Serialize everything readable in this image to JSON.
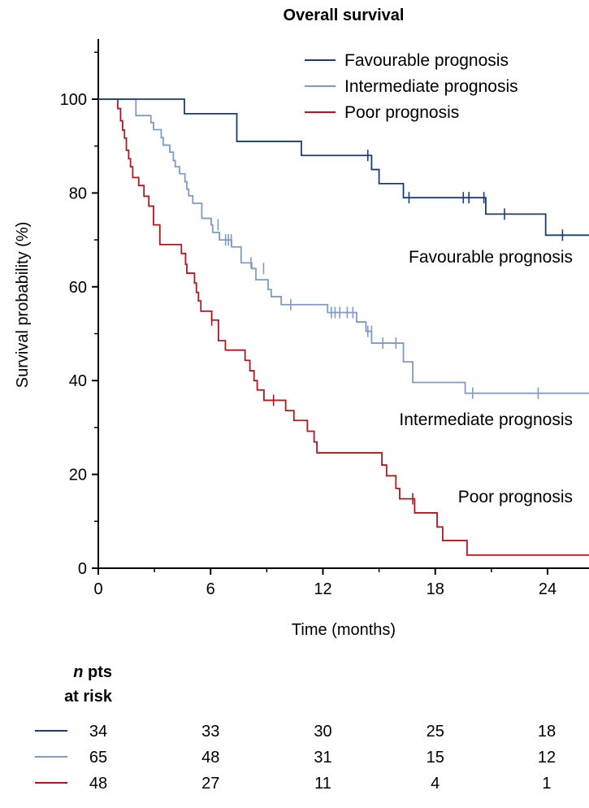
{
  "chart_data": {
    "type": "line",
    "subtype": "kaplan-meier",
    "title": "Overall survival",
    "xlabel": "Time (months)",
    "ylabel": "Survival probability (%)",
    "xlim": [
      0,
      26.2
    ],
    "ylim": [
      0,
      112
    ],
    "xticks": [
      0,
      6,
      12,
      18,
      24
    ],
    "yticks": [
      0,
      20,
      40,
      60,
      80,
      100
    ],
    "grid": false,
    "legend_position": "top-right",
    "series": [
      {
        "name": "Favourable prognosis",
        "label": "Favourable prognosis",
        "color": "#1c3a78",
        "steps": [
          [
            0,
            100
          ],
          [
            4.6,
            96.9
          ],
          [
            7.4,
            91.0
          ],
          [
            10.85,
            88.0
          ],
          [
            14.6,
            85.0
          ],
          [
            15.0,
            82.0
          ],
          [
            16.3,
            79.0
          ],
          [
            20.7,
            75.5
          ],
          [
            23.9,
            71.0
          ]
        ],
        "censored": [
          [
            14.4,
            88.0
          ],
          [
            16.6,
            79.0
          ],
          [
            19.5,
            79.0
          ],
          [
            19.8,
            79.0
          ],
          [
            20.6,
            79.0
          ],
          [
            21.7,
            75.5
          ],
          [
            24.8,
            71.0
          ]
        ]
      },
      {
        "name": "Intermediate prognosis",
        "label": "Intermediate prognosis",
        "color": "#7f9cc0",
        "steps": [
          [
            0,
            100
          ],
          [
            2.01,
            96.5
          ],
          [
            2.81,
            95.0
          ],
          [
            2.95,
            93.5
          ],
          [
            3.36,
            91.8
          ],
          [
            3.47,
            90.2
          ],
          [
            3.82,
            88.7
          ],
          [
            4.01,
            86.9
          ],
          [
            4.11,
            85.6
          ],
          [
            4.34,
            84.1
          ],
          [
            4.63,
            82.4
          ],
          [
            4.73,
            80.8
          ],
          [
            4.83,
            79.4
          ],
          [
            5.05,
            77.8
          ],
          [
            5.53,
            74.6
          ],
          [
            6.03,
            73.2
          ],
          [
            6.11,
            71.6
          ],
          [
            6.47,
            70.0
          ],
          [
            7.12,
            68.5
          ],
          [
            7.63,
            65.1
          ],
          [
            8.2,
            63.9
          ],
          [
            8.42,
            61.5
          ],
          [
            9.07,
            59.4
          ],
          [
            9.24,
            57.9
          ],
          [
            9.77,
            56.2
          ],
          [
            12.25,
            54.5
          ],
          [
            13.8,
            52.5
          ],
          [
            14.3,
            50.5
          ],
          [
            14.6,
            48.0
          ],
          [
            16.3,
            44.0
          ],
          [
            16.8,
            39.6
          ],
          [
            19.6,
            37.3
          ]
        ],
        "censored": [
          [
            6.4,
            73.2
          ],
          [
            6.8,
            70.0
          ],
          [
            6.95,
            70.0
          ],
          [
            7.1,
            70.0
          ],
          [
            8.16,
            65.1
          ],
          [
            8.83,
            63.9
          ],
          [
            10.28,
            56.2
          ],
          [
            12.45,
            54.5
          ],
          [
            12.65,
            54.5
          ],
          [
            12.9,
            54.5
          ],
          [
            13.3,
            54.5
          ],
          [
            13.6,
            54.5
          ],
          [
            14.4,
            50.5
          ],
          [
            14.6,
            50.5
          ],
          [
            15.2,
            48.0
          ],
          [
            15.9,
            48.0
          ],
          [
            20.0,
            37.3
          ],
          [
            23.5,
            37.3
          ]
        ]
      },
      {
        "name": "Poor prognosis",
        "label": "Poor prognosis",
        "color": "#b01820",
        "steps": [
          [
            0,
            100
          ],
          [
            1.04,
            98.0
          ],
          [
            1.19,
            95.4
          ],
          [
            1.3,
            93.4
          ],
          [
            1.4,
            91.7
          ],
          [
            1.5,
            89.1
          ],
          [
            1.62,
            87.3
          ],
          [
            1.72,
            85.6
          ],
          [
            1.84,
            83.3
          ],
          [
            2.16,
            81.6
          ],
          [
            2.44,
            79.3
          ],
          [
            2.7,
            77.2
          ],
          [
            2.95,
            73.2
          ],
          [
            3.29,
            69.0
          ],
          [
            4.44,
            67.1
          ],
          [
            4.66,
            64.8
          ],
          [
            4.73,
            62.9
          ],
          [
            5.14,
            60.8
          ],
          [
            5.24,
            58.8
          ],
          [
            5.35,
            57.0
          ],
          [
            5.48,
            54.8
          ],
          [
            6.06,
            52.9
          ],
          [
            6.42,
            48.5
          ],
          [
            6.79,
            46.5
          ],
          [
            7.84,
            44.3
          ],
          [
            8.1,
            42.1
          ],
          [
            8.32,
            40.0
          ],
          [
            8.49,
            38.0
          ],
          [
            8.85,
            35.8
          ],
          [
            10.01,
            33.6
          ],
          [
            10.45,
            31.5
          ],
          [
            11.17,
            29.2
          ],
          [
            11.53,
            26.9
          ],
          [
            11.68,
            24.6
          ],
          [
            15.15,
            22.0
          ],
          [
            15.4,
            19.7
          ],
          [
            15.9,
            17.0
          ],
          [
            16.1,
            14.8
          ],
          [
            16.9,
            11.8
          ],
          [
            18.1,
            8.8
          ],
          [
            18.4,
            5.9
          ],
          [
            19.7,
            2.8
          ]
        ],
        "censored": [
          [
            6.06,
            52.9
          ],
          [
            9.36,
            35.8
          ],
          [
            16.8,
            14.8
          ]
        ]
      }
    ],
    "annotations": [
      "Favourable prognosis",
      "Intermediate prognosis",
      "Poor prognosis"
    ],
    "risk_table": {
      "title_italic": "n",
      "title_rest": " pts",
      "title_line2": "at risk",
      "timepoints": [
        0,
        6,
        12,
        18,
        24
      ],
      "rows": [
        {
          "series": "Favourable prognosis",
          "values": [
            "34",
            "33",
            "30",
            "25",
            "18"
          ]
        },
        {
          "series": "Intermediate prognosis",
          "values": [
            "65",
            "48",
            "31",
            "15",
            "12"
          ]
        },
        {
          "series": "Poor prognosis",
          "values": [
            "48",
            "27",
            "11",
            "4",
            "1"
          ]
        }
      ]
    }
  }
}
